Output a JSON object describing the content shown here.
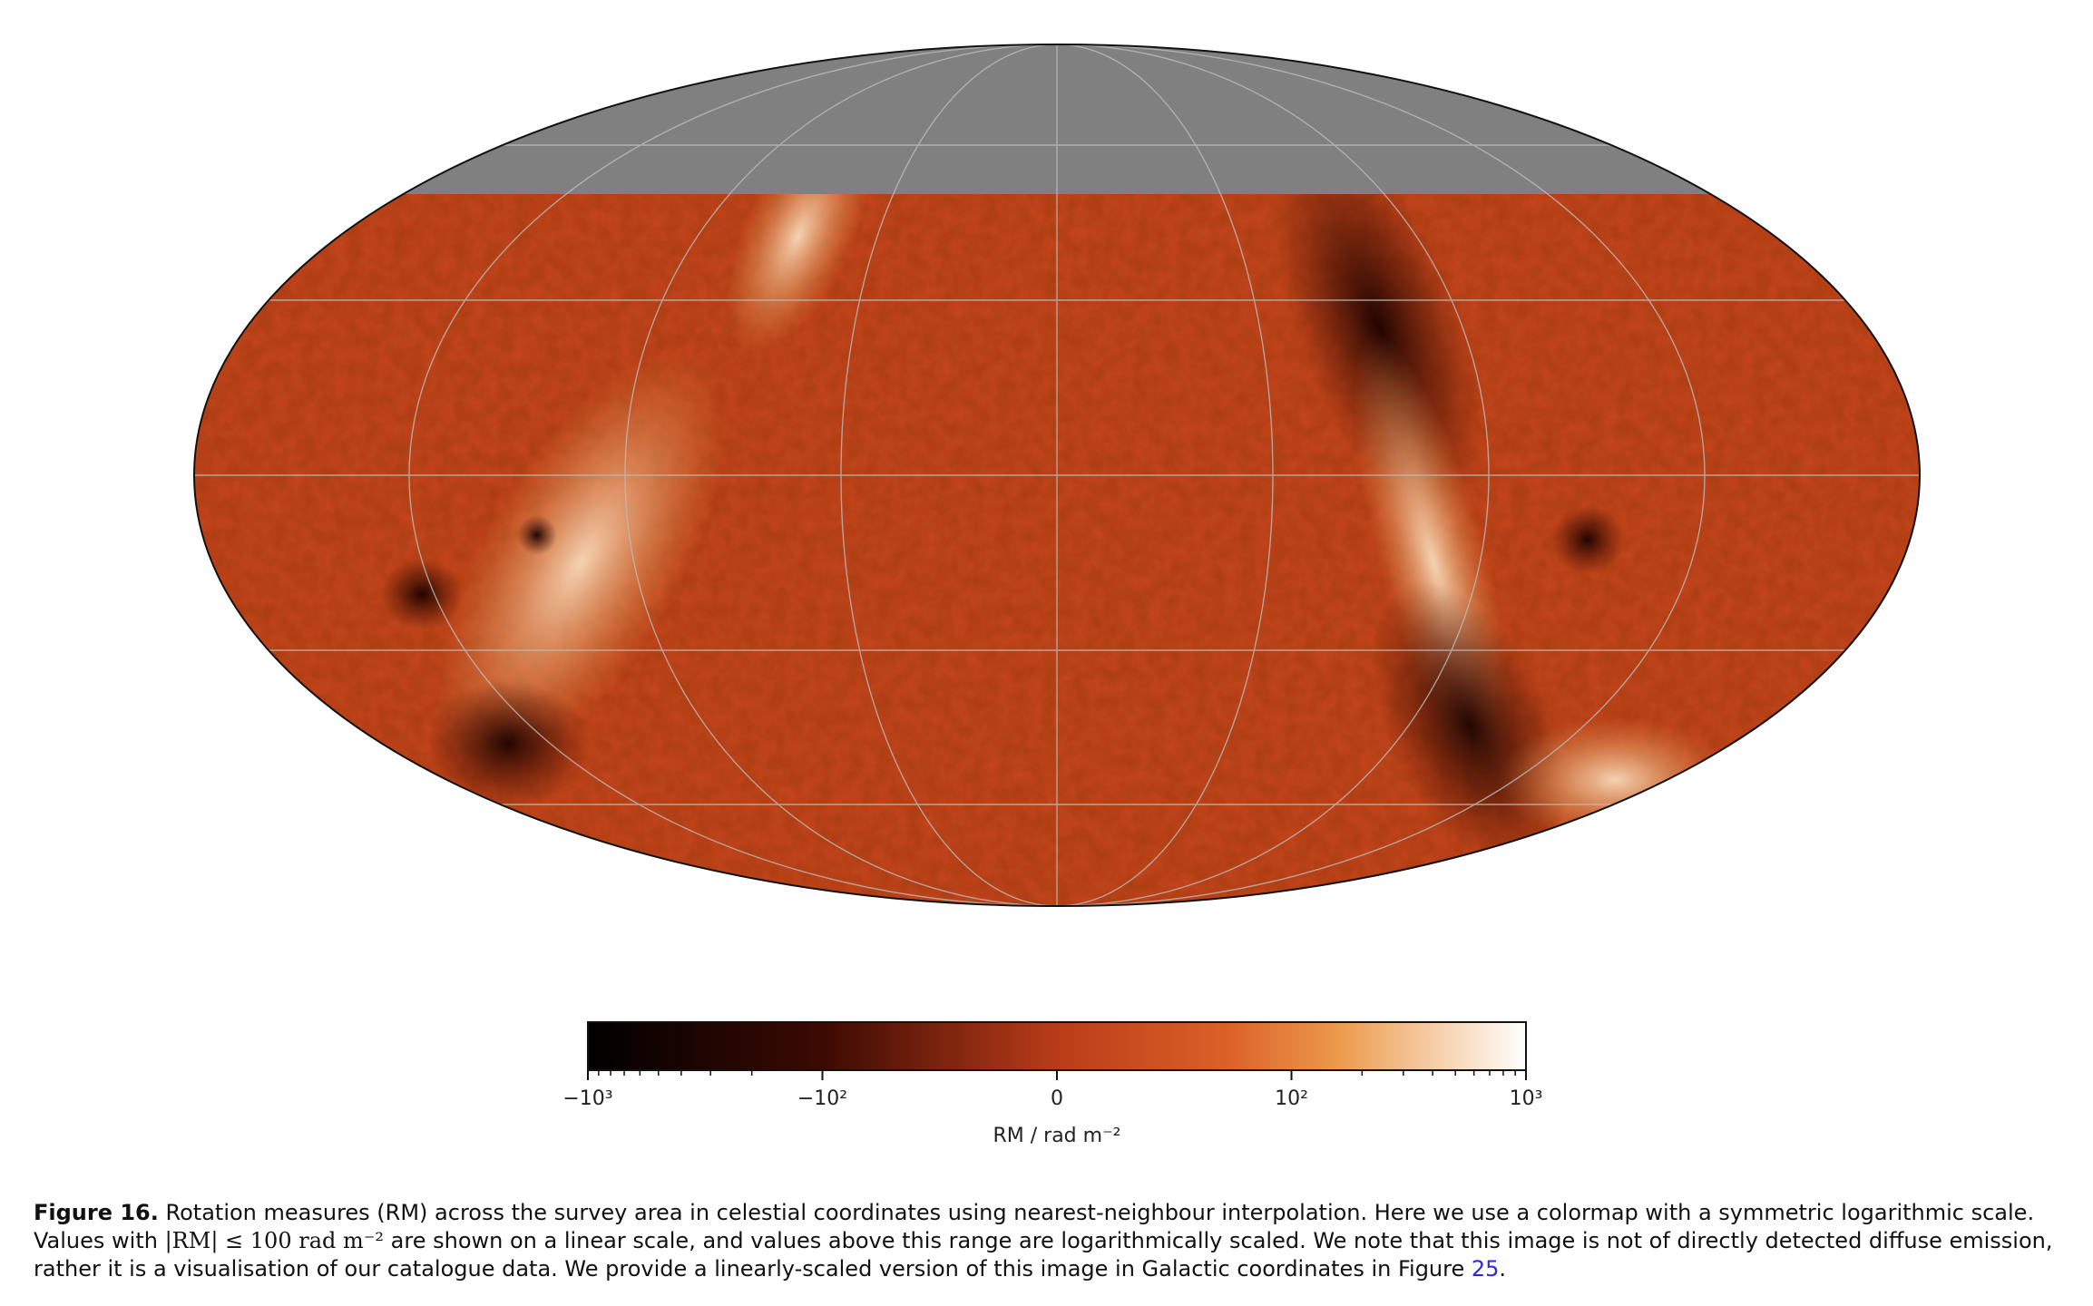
{
  "figure": {
    "colorbar": {
      "lim": [
        -1000,
        1000
      ],
      "linthresh": 100,
      "ticks": [
        {
          "value": -1000,
          "label": "−10³"
        },
        {
          "value": -100,
          "label": "−10²"
        },
        0,
        {
          "value": 100,
          "label": "10²"
        },
        {
          "value": 1000,
          "label": "10³"
        }
      ],
      "label": "RM / rad m⁻²"
    },
    "caption": {
      "label": "Figure 16.",
      "text_1": " Rotation measures (RM) across the survey area in celestial coordinates using nearest-neighbour interpolation. Here we use a colormap with a symmetric logarithmic scale. Values with ",
      "math": "|RM| ≤ 100 rad m⁻²",
      "text_2": " are shown on a linear scale, and values above this range are logarithmically scaled. We note that this image is not of directly detected diffuse emission, rather it is a visualisation of our catalogue data. We provide a linearly-scaled version of this image in Galactic coordinates in Figure ",
      "link": "25",
      "text_3": "."
    }
  }
}
